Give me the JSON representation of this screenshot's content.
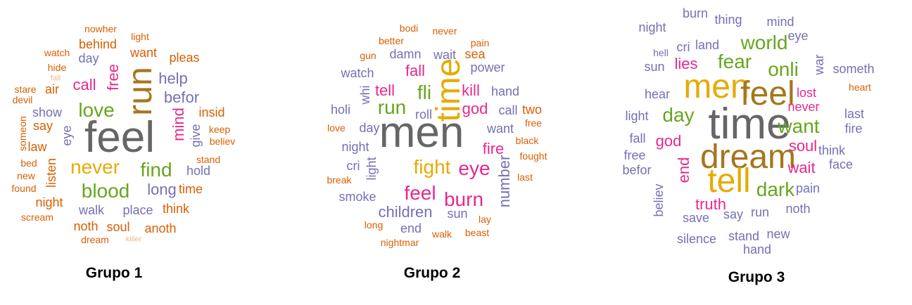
{
  "colors": {
    "c1": "#d95f02",
    "c2": "#7570b3",
    "c3": "#e7298a",
    "c4": "#66a61e",
    "c5": "#e6ab02",
    "c6": "#a6761d",
    "c7": "#666666"
  },
  "clouds": [
    {
      "label": "Grupo 1",
      "words": [
        {
          "t": "feel",
          "c": "c7",
          "s": 6,
          "v": false
        },
        {
          "t": "run",
          "c": "c6",
          "s": 5,
          "v": true
        },
        {
          "t": "never",
          "c": "c5",
          "s": 4,
          "v": false
        },
        {
          "t": "love",
          "c": "c4",
          "s": 4,
          "v": false
        },
        {
          "t": "blood",
          "c": "c4",
          "s": 4,
          "v": false
        },
        {
          "t": "find",
          "c": "c4",
          "s": 4,
          "v": false
        },
        {
          "t": "mind",
          "c": "c3",
          "s": 3,
          "v": true
        },
        {
          "t": "free",
          "c": "c3",
          "s": 3,
          "v": true
        },
        {
          "t": "call",
          "c": "c3",
          "s": 3,
          "v": false
        },
        {
          "t": "help",
          "c": "c2",
          "s": 3,
          "v": false
        },
        {
          "t": "befor",
          "c": "c2",
          "s": 3,
          "v": false
        },
        {
          "t": "long",
          "c": "c2",
          "s": 3,
          "v": false
        },
        {
          "t": "walk",
          "c": "c2",
          "s": 2,
          "v": false
        },
        {
          "t": "place",
          "c": "c2",
          "s": 2,
          "v": false
        },
        {
          "t": "hold",
          "c": "c2",
          "s": 2,
          "v": false
        },
        {
          "t": "eye",
          "c": "c2",
          "s": 2,
          "v": true
        },
        {
          "t": "show",
          "c": "c2",
          "s": 2,
          "v": false
        },
        {
          "t": "day",
          "c": "c2",
          "s": 2,
          "v": false
        },
        {
          "t": "give",
          "c": "c2",
          "s": 2,
          "v": true
        },
        {
          "t": "behind",
          "c": "c1",
          "s": 2,
          "v": false
        },
        {
          "t": "want",
          "c": "c1",
          "s": 2,
          "v": false
        },
        {
          "t": "pleas",
          "c": "c1",
          "s": 2,
          "v": false
        },
        {
          "t": "insid",
          "c": "c1",
          "s": 2,
          "v": false
        },
        {
          "t": "time",
          "c": "c1",
          "s": 2,
          "v": false
        },
        {
          "t": "think",
          "c": "c1",
          "s": 2,
          "v": false
        },
        {
          "t": "anoth",
          "c": "c1",
          "s": 2,
          "v": false
        },
        {
          "t": "soul",
          "c": "c1",
          "s": 2,
          "v": false
        },
        {
          "t": "noth",
          "c": "c1",
          "s": 2,
          "v": false
        },
        {
          "t": "night",
          "c": "c1",
          "s": 2,
          "v": false
        },
        {
          "t": "listen",
          "c": "c1",
          "s": 2,
          "v": true
        },
        {
          "t": "law",
          "c": "c1",
          "s": 2,
          "v": false
        },
        {
          "t": "say",
          "c": "c1",
          "s": 2,
          "v": false
        },
        {
          "t": "air",
          "c": "c1",
          "s": 2,
          "v": false
        },
        {
          "t": "nowher",
          "c": "c1",
          "s": 1,
          "v": false
        },
        {
          "t": "light",
          "c": "c1",
          "s": 1,
          "v": false
        },
        {
          "t": "watch",
          "c": "c1",
          "s": 1,
          "v": false
        },
        {
          "t": "hide",
          "c": "c1",
          "s": 1,
          "v": false
        },
        {
          "t": "fall",
          "c": "c1",
          "s": 0,
          "v": false
        },
        {
          "t": "stare",
          "c": "c1",
          "s": 1,
          "v": false
        },
        {
          "t": "devil",
          "c": "c1",
          "s": 1,
          "v": false
        },
        {
          "t": "someon",
          "c": "c1",
          "s": 1,
          "v": true
        },
        {
          "t": "bed",
          "c": "c1",
          "s": 1,
          "v": false
        },
        {
          "t": "new",
          "c": "c1",
          "s": 1,
          "v": false
        },
        {
          "t": "found",
          "c": "c1",
          "s": 1,
          "v": false
        },
        {
          "t": "scream",
          "c": "c1",
          "s": 1,
          "v": false
        },
        {
          "t": "dream",
          "c": "c1",
          "s": 1,
          "v": false
        },
        {
          "t": "killer",
          "c": "c1",
          "s": 0,
          "v": false
        },
        {
          "t": "keep",
          "c": "c1",
          "s": 1,
          "v": false
        },
        {
          "t": "believ",
          "c": "c1",
          "s": 1,
          "v": false
        },
        {
          "t": "stand",
          "c": "c1",
          "s": 1,
          "v": false
        }
      ]
    },
    {
      "label": "Grupo 2",
      "words": [
        {
          "t": "men",
          "c": "c7",
          "s": 6,
          "v": false
        },
        {
          "t": "time",
          "c": "c5",
          "s": 5,
          "v": true
        },
        {
          "t": "fight",
          "c": "c5",
          "s": 4,
          "v": false
        },
        {
          "t": "run",
          "c": "c4",
          "s": 4,
          "v": false
        },
        {
          "t": "fli",
          "c": "c4",
          "s": 4,
          "v": false
        },
        {
          "t": "feel",
          "c": "c3",
          "s": 4,
          "v": false
        },
        {
          "t": "burn",
          "c": "c3",
          "s": 4,
          "v": false
        },
        {
          "t": "eye",
          "c": "c3",
          "s": 4,
          "v": false
        },
        {
          "t": "kill",
          "c": "c3",
          "s": 3,
          "v": false
        },
        {
          "t": "god",
          "c": "c3",
          "s": 3,
          "v": false
        },
        {
          "t": "fire",
          "c": "c3",
          "s": 3,
          "v": false
        },
        {
          "t": "fall",
          "c": "c3",
          "s": 3,
          "v": false
        },
        {
          "t": "tell",
          "c": "c3",
          "s": 3,
          "v": false
        },
        {
          "t": "children",
          "c": "c2",
          "s": 3,
          "v": false
        },
        {
          "t": "number",
          "c": "c2",
          "s": 3,
          "v": true
        },
        {
          "t": "power",
          "c": "c2",
          "s": 2,
          "v": false
        },
        {
          "t": "hand",
          "c": "c2",
          "s": 2,
          "v": false
        },
        {
          "t": "watch",
          "c": "c2",
          "s": 2,
          "v": false
        },
        {
          "t": "night",
          "c": "c2",
          "s": 2,
          "v": false
        },
        {
          "t": "day",
          "c": "c2",
          "s": 2,
          "v": false
        },
        {
          "t": "want",
          "c": "c2",
          "s": 2,
          "v": false
        },
        {
          "t": "smoke",
          "c": "c2",
          "s": 2,
          "v": false
        },
        {
          "t": "sun",
          "c": "c2",
          "s": 2,
          "v": false
        },
        {
          "t": "end",
          "c": "c2",
          "s": 2,
          "v": false
        },
        {
          "t": "light",
          "c": "c2",
          "s": 2,
          "v": true
        },
        {
          "t": "cri",
          "c": "c2",
          "s": 2,
          "v": false
        },
        {
          "t": "holi",
          "c": "c2",
          "s": 2,
          "v": false
        },
        {
          "t": "whi",
          "c": "c2",
          "s": 2,
          "v": true
        },
        {
          "t": "damn",
          "c": "c2",
          "s": 2,
          "v": false
        },
        {
          "t": "wait",
          "c": "c2",
          "s": 2,
          "v": false
        },
        {
          "t": "roll",
          "c": "c2",
          "s": 2,
          "v": false
        },
        {
          "t": "call",
          "c": "c2",
          "s": 2,
          "v": false
        },
        {
          "t": "sea",
          "c": "c1",
          "s": 2,
          "v": false
        },
        {
          "t": "bodi",
          "c": "c1",
          "s": 1,
          "v": false
        },
        {
          "t": "never",
          "c": "c1",
          "s": 1,
          "v": false
        },
        {
          "t": "pain",
          "c": "c1",
          "s": 1,
          "v": false
        },
        {
          "t": "better",
          "c": "c1",
          "s": 1,
          "v": false
        },
        {
          "t": "gun",
          "c": "c1",
          "s": 1,
          "v": false
        },
        {
          "t": "two",
          "c": "c1",
          "s": 2,
          "v": false
        },
        {
          "t": "free",
          "c": "c1",
          "s": 1,
          "v": false
        },
        {
          "t": "black",
          "c": "c1",
          "s": 1,
          "v": false
        },
        {
          "t": "fought",
          "c": "c1",
          "s": 1,
          "v": false
        },
        {
          "t": "last",
          "c": "c1",
          "s": 1,
          "v": false
        },
        {
          "t": "love",
          "c": "c1",
          "s": 1,
          "v": false
        },
        {
          "t": "break",
          "c": "c1",
          "s": 1,
          "v": false
        },
        {
          "t": "lay",
          "c": "c1",
          "s": 1,
          "v": false
        },
        {
          "t": "long",
          "c": "c1",
          "s": 1,
          "v": false
        },
        {
          "t": "walk",
          "c": "c1",
          "s": 1,
          "v": false
        },
        {
          "t": "beast",
          "c": "c1",
          "s": 1,
          "v": false
        },
        {
          "t": "nightmar",
          "c": "c1",
          "s": 1,
          "v": false
        }
      ]
    },
    {
      "label": "Grupo 3",
      "words": [
        {
          "t": "time",
          "c": "c7",
          "s": 6,
          "v": false
        },
        {
          "t": "men",
          "c": "c5",
          "s": 5,
          "v": false
        },
        {
          "t": "feel",
          "c": "c6",
          "s": 5,
          "v": false
        },
        {
          "t": "dream",
          "c": "c6",
          "s": 5,
          "v": false
        },
        {
          "t": "tell",
          "c": "c5",
          "s": 5,
          "v": false
        },
        {
          "t": "onli",
          "c": "c4",
          "s": 4,
          "v": false
        },
        {
          "t": "fear",
          "c": "c4",
          "s": 4,
          "v": false
        },
        {
          "t": "world",
          "c": "c4",
          "s": 4,
          "v": false
        },
        {
          "t": "day",
          "c": "c4",
          "s": 4,
          "v": false
        },
        {
          "t": "want",
          "c": "c4",
          "s": 4,
          "v": false
        },
        {
          "t": "dark",
          "c": "c4",
          "s": 4,
          "v": false
        },
        {
          "t": "god",
          "c": "c3",
          "s": 3,
          "v": false
        },
        {
          "t": "end",
          "c": "c3",
          "s": 3,
          "v": true
        },
        {
          "t": "wait",
          "c": "c3",
          "s": 3,
          "v": false
        },
        {
          "t": "soul",
          "c": "c3",
          "s": 3,
          "v": false
        },
        {
          "t": "truth",
          "c": "c3",
          "s": 3,
          "v": false
        },
        {
          "t": "lies",
          "c": "c3",
          "s": 3,
          "v": false
        },
        {
          "t": "lost",
          "c": "c3",
          "s": 2,
          "v": false
        },
        {
          "t": "never",
          "c": "c3",
          "s": 2,
          "v": false
        },
        {
          "t": "night",
          "c": "c2",
          "s": 2,
          "v": false
        },
        {
          "t": "thing",
          "c": "c2",
          "s": 2,
          "v": false
        },
        {
          "t": "eye",
          "c": "c2",
          "s": 2,
          "v": false
        },
        {
          "t": "war",
          "c": "c2",
          "s": 2,
          "v": true
        },
        {
          "t": "sun",
          "c": "c2",
          "s": 2,
          "v": false
        },
        {
          "t": "hear",
          "c": "c2",
          "s": 2,
          "v": false
        },
        {
          "t": "light",
          "c": "c2",
          "s": 2,
          "v": false
        },
        {
          "t": "fall",
          "c": "c2",
          "s": 2,
          "v": false
        },
        {
          "t": "free",
          "c": "c2",
          "s": 2,
          "v": false
        },
        {
          "t": "befor",
          "c": "c2",
          "s": 2,
          "v": false
        },
        {
          "t": "believ",
          "c": "c2",
          "s": 2,
          "v": true
        },
        {
          "t": "save",
          "c": "c2",
          "s": 2,
          "v": false
        },
        {
          "t": "say",
          "c": "c2",
          "s": 2,
          "v": false
        },
        {
          "t": "run",
          "c": "c2",
          "s": 2,
          "v": false
        },
        {
          "t": "noth",
          "c": "c2",
          "s": 2,
          "v": false
        },
        {
          "t": "pain",
          "c": "c2",
          "s": 2,
          "v": false
        },
        {
          "t": "silence",
          "c": "c2",
          "s": 2,
          "v": false
        },
        {
          "t": "stand",
          "c": "c2",
          "s": 2,
          "v": false
        },
        {
          "t": "new",
          "c": "c2",
          "s": 2,
          "v": false
        },
        {
          "t": "hand",
          "c": "c2",
          "s": 2,
          "v": false
        },
        {
          "t": "face",
          "c": "c2",
          "s": 2,
          "v": false
        },
        {
          "t": "think",
          "c": "c2",
          "s": 2,
          "v": false
        },
        {
          "t": "fire",
          "c": "c2",
          "s": 2,
          "v": false
        },
        {
          "t": "last",
          "c": "c2",
          "s": 2,
          "v": false
        },
        {
          "t": "someth",
          "c": "c2",
          "s": 2,
          "v": false
        },
        {
          "t": "burn",
          "c": "c2",
          "s": 2,
          "v": false
        },
        {
          "t": "mind",
          "c": "c2",
          "s": 2,
          "v": false
        },
        {
          "t": "cri",
          "c": "c2",
          "s": 2,
          "v": false
        },
        {
          "t": "land",
          "c": "c2",
          "s": 2,
          "v": false
        },
        {
          "t": "hell",
          "c": "c2",
          "s": 1,
          "v": false
        },
        {
          "t": "heart",
          "c": "c1",
          "s": 1,
          "v": false
        }
      ]
    }
  ]
}
